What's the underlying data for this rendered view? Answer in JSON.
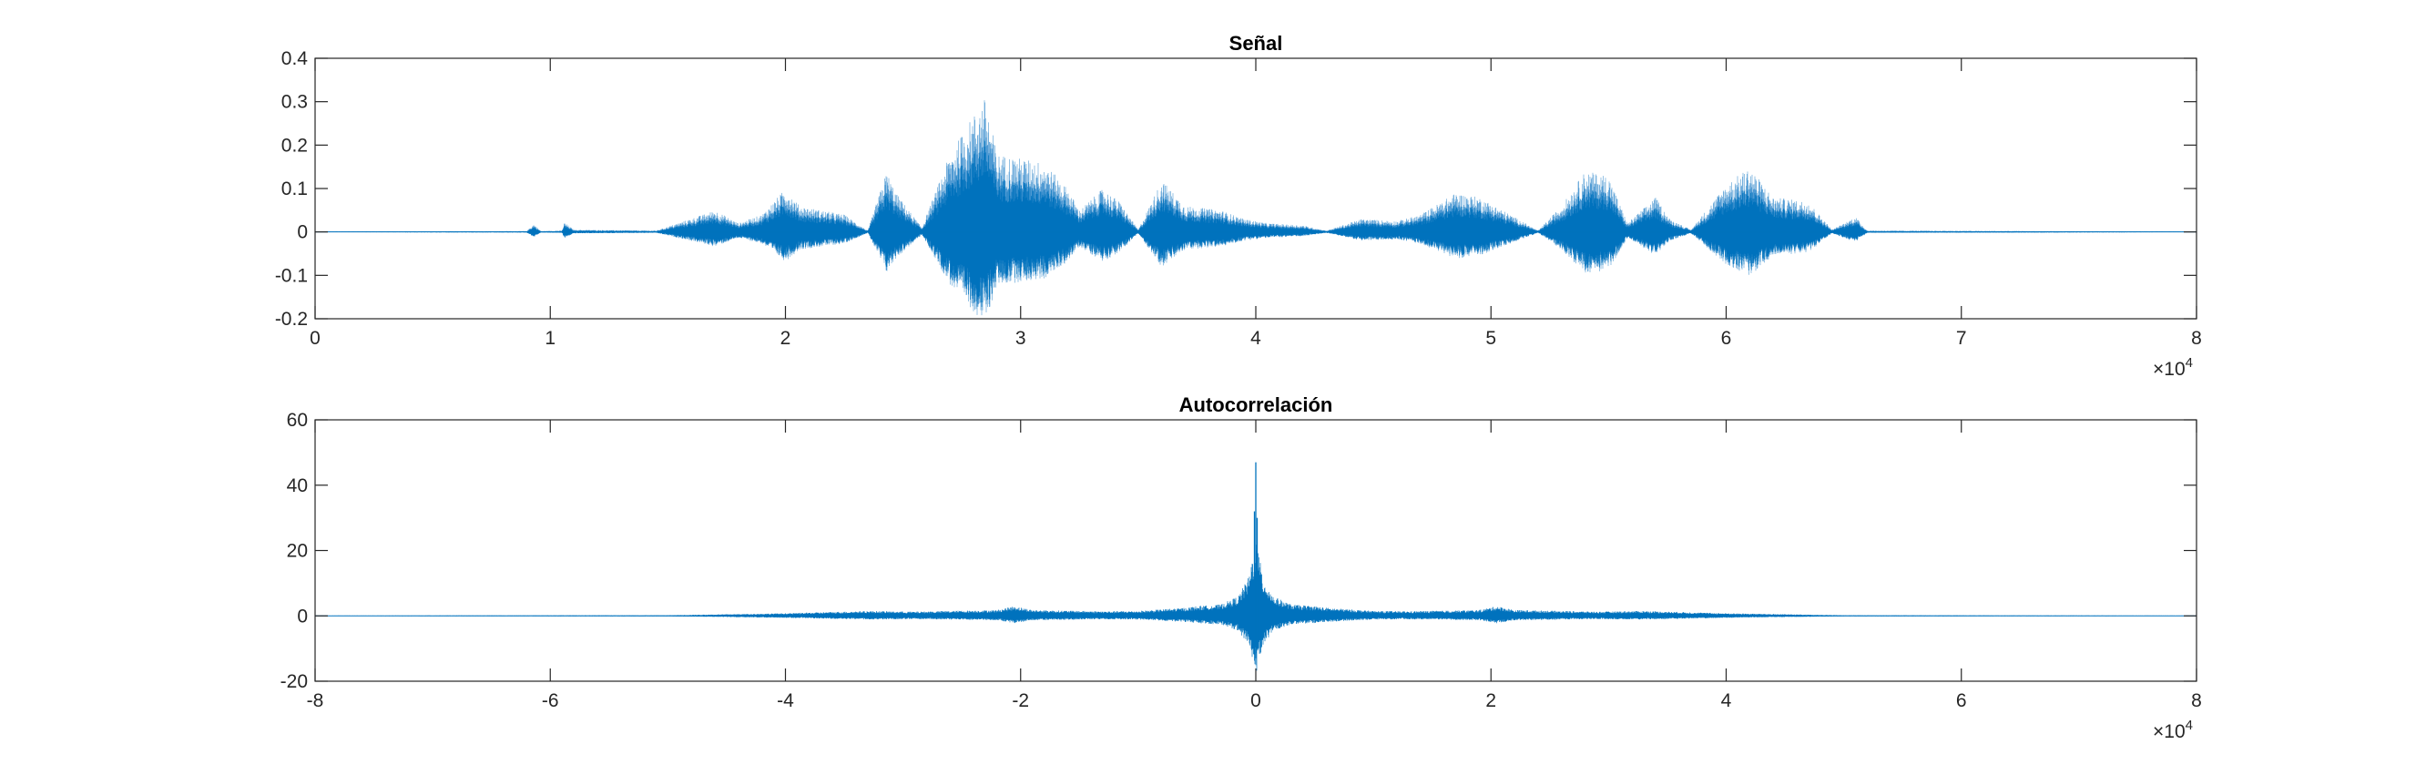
{
  "chart_data": [
    {
      "type": "line",
      "title": "Señal",
      "xlabel": "",
      "ylabel": "",
      "xlim": [
        0,
        80000
      ],
      "ylim": [
        -0.2,
        0.4
      ],
      "xticks": [
        0,
        10000,
        20000,
        30000,
        40000,
        50000,
        60000,
        70000,
        80000
      ],
      "xtick_labels": [
        "0",
        "1",
        "2",
        "3",
        "4",
        "5",
        "6",
        "7",
        "8"
      ],
      "x_exponent": {
        "base": "×10",
        "power": "4"
      },
      "yticks": [
        -0.2,
        -0.1,
        0,
        0.1,
        0.2,
        0.3,
        0.4
      ],
      "ytick_labels": [
        "-0.2",
        "-0.1",
        "0",
        "0.1",
        "0.2",
        "0.3",
        "0.4"
      ],
      "grid": false,
      "color": "#0072BD",
      "envelope": [
        {
          "x": 0,
          "y": 0.001
        },
        {
          "x": 9000,
          "y": 0.002
        },
        {
          "x": 9300,
          "y": 0.018
        },
        {
          "x": 9600,
          "y": 0.002
        },
        {
          "x": 10500,
          "y": 0.003
        },
        {
          "x": 10600,
          "y": 0.022
        },
        {
          "x": 11000,
          "y": 0.005
        },
        {
          "x": 14500,
          "y": 0.003
        },
        {
          "x": 16500,
          "y": 0.04
        },
        {
          "x": 17000,
          "y": 0.05
        },
        {
          "x": 18000,
          "y": 0.02
        },
        {
          "x": 19000,
          "y": 0.04
        },
        {
          "x": 20000,
          "y": 0.1
        },
        {
          "x": 20600,
          "y": 0.06
        },
        {
          "x": 21500,
          "y": 0.05
        },
        {
          "x": 22500,
          "y": 0.04
        },
        {
          "x": 23500,
          "y": 0.003
        },
        {
          "x": 24300,
          "y": 0.14
        },
        {
          "x": 24700,
          "y": 0.09
        },
        {
          "x": 25800,
          "y": 0.01
        },
        {
          "x": 27000,
          "y": 0.18
        },
        {
          "x": 28000,
          "y": 0.27
        },
        {
          "x": 28500,
          "y": 0.31
        },
        {
          "x": 29000,
          "y": 0.18
        },
        {
          "x": 30000,
          "y": 0.17
        },
        {
          "x": 31000,
          "y": 0.16
        },
        {
          "x": 32000,
          "y": 0.1
        },
        {
          "x": 32500,
          "y": 0.05
        },
        {
          "x": 33500,
          "y": 0.1
        },
        {
          "x": 34200,
          "y": 0.07
        },
        {
          "x": 35000,
          "y": 0.005
        },
        {
          "x": 36000,
          "y": 0.12
        },
        {
          "x": 37000,
          "y": 0.06
        },
        {
          "x": 38500,
          "y": 0.05
        },
        {
          "x": 39500,
          "y": 0.03
        },
        {
          "x": 40500,
          "y": 0.02
        },
        {
          "x": 42000,
          "y": 0.015
        },
        {
          "x": 43000,
          "y": 0.003
        },
        {
          "x": 44500,
          "y": 0.03
        },
        {
          "x": 46000,
          "y": 0.025
        },
        {
          "x": 47000,
          "y": 0.04
        },
        {
          "x": 48500,
          "y": 0.09
        },
        {
          "x": 49500,
          "y": 0.08
        },
        {
          "x": 50500,
          "y": 0.05
        },
        {
          "x": 52000,
          "y": 0.003
        },
        {
          "x": 53000,
          "y": 0.06
        },
        {
          "x": 54000,
          "y": 0.14
        },
        {
          "x": 55000,
          "y": 0.13
        },
        {
          "x": 55800,
          "y": 0.02
        },
        {
          "x": 57000,
          "y": 0.08
        },
        {
          "x": 57600,
          "y": 0.03
        },
        {
          "x": 58500,
          "y": 0.005
        },
        {
          "x": 60000,
          "y": 0.11
        },
        {
          "x": 61000,
          "y": 0.15
        },
        {
          "x": 62000,
          "y": 0.08
        },
        {
          "x": 63500,
          "y": 0.07
        },
        {
          "x": 64500,
          "y": 0.005
        },
        {
          "x": 65500,
          "y": 0.035
        },
        {
          "x": 66000,
          "y": 0.003
        },
        {
          "x": 80000,
          "y": 0.001
        }
      ]
    },
    {
      "type": "line",
      "title": "Autocorrelación",
      "xlabel": "",
      "ylabel": "",
      "xlim": [
        -80000,
        80000
      ],
      "ylim": [
        -20,
        60
      ],
      "xticks": [
        -80000,
        -60000,
        -40000,
        -20000,
        0,
        20000,
        40000,
        60000,
        80000
      ],
      "xtick_labels": [
        "-8",
        "-6",
        "-4",
        "-2",
        "0",
        "2",
        "4",
        "6",
        "8"
      ],
      "x_exponent": {
        "base": "×10",
        "power": "4"
      },
      "yticks": [
        -20,
        0,
        20,
        40,
        60
      ],
      "ytick_labels": [
        "-20",
        "0",
        "20",
        "40",
        "60"
      ],
      "grid": false,
      "color": "#0072BD",
      "peak": 47,
      "envelope": [
        {
          "x": -80000,
          "y": 0.1
        },
        {
          "x": -50000,
          "y": 0.2
        },
        {
          "x": -45000,
          "y": 0.5
        },
        {
          "x": -40000,
          "y": 0.8
        },
        {
          "x": -36000,
          "y": 1.2
        },
        {
          "x": -33000,
          "y": 1.5
        },
        {
          "x": -29000,
          "y": 1.3
        },
        {
          "x": -25000,
          "y": 1.6
        },
        {
          "x": -22000,
          "y": 1.8
        },
        {
          "x": -20500,
          "y": 3
        },
        {
          "x": -19000,
          "y": 1.8
        },
        {
          "x": -16000,
          "y": 1.6
        },
        {
          "x": -13000,
          "y": 1.4
        },
        {
          "x": -10000,
          "y": 1.5
        },
        {
          "x": -6000,
          "y": 2.5
        },
        {
          "x": -5000,
          "y": 3
        },
        {
          "x": -3000,
          "y": 3.5
        },
        {
          "x": -1500,
          "y": 6
        },
        {
          "x": -600,
          "y": 12
        },
        {
          "x": 0,
          "y": 24
        },
        {
          "x": 600,
          "y": 12
        },
        {
          "x": 1500,
          "y": 6
        },
        {
          "x": 3000,
          "y": 3.5
        },
        {
          "x": 5000,
          "y": 3
        },
        {
          "x": 6000,
          "y": 2.5
        },
        {
          "x": 10000,
          "y": 1.5
        },
        {
          "x": 13000,
          "y": 1.4
        },
        {
          "x": 16000,
          "y": 1.6
        },
        {
          "x": 19000,
          "y": 1.8
        },
        {
          "x": 20500,
          "y": 3
        },
        {
          "x": 22000,
          "y": 1.8
        },
        {
          "x": 25000,
          "y": 1.6
        },
        {
          "x": 29000,
          "y": 1.3
        },
        {
          "x": 33000,
          "y": 1.5
        },
        {
          "x": 36000,
          "y": 1.2
        },
        {
          "x": 40000,
          "y": 0.8
        },
        {
          "x": 45000,
          "y": 0.5
        },
        {
          "x": 50000,
          "y": 0.2
        },
        {
          "x": 80000,
          "y": 0.1
        }
      ]
    }
  ]
}
